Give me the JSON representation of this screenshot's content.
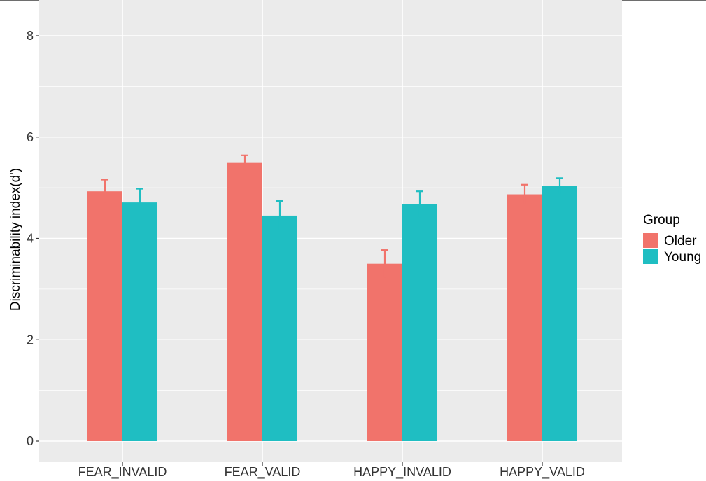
{
  "chart_data": {
    "type": "bar",
    "xlabel": "",
    "ylabel": "Discriminability index(d')",
    "ylim": [
      0,
      8.2
    ],
    "yticks": [
      0,
      2,
      4,
      6,
      8
    ],
    "categories": [
      "FEAR_INVALID",
      "FEAR_VALID",
      "HAPPY_INVALID",
      "HAPPY_VALID"
    ],
    "series": [
      {
        "name": "Older",
        "color": "#f1736b",
        "values": [
          4.93,
          5.49,
          3.5,
          4.87
        ],
        "errors": [
          0.23,
          0.15,
          0.27,
          0.19
        ]
      },
      {
        "name": "Young",
        "color": "#1fbec2",
        "values": [
          4.71,
          4.45,
          4.67,
          5.03
        ],
        "errors": [
          0.27,
          0.29,
          0.26,
          0.16
        ]
      }
    ],
    "legend": {
      "title": "Group",
      "position": "right"
    },
    "grid": true,
    "panel_background": "#ebebeb",
    "grid_color": "#ffffff"
  }
}
